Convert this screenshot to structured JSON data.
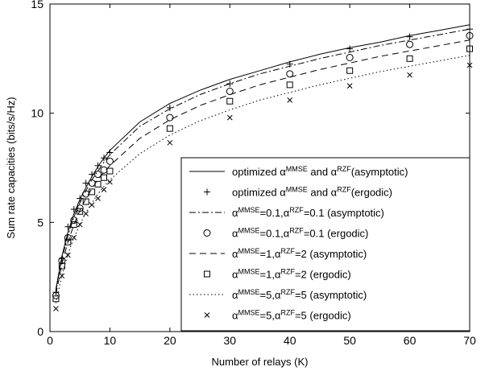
{
  "chart_data": {
    "type": "line",
    "xlabel": "Number of relays (K)",
    "ylabel": "Sum rate capacities (bits/s/Hz)",
    "xlim": [
      0,
      70
    ],
    "ylim": [
      0,
      15
    ],
    "xticks": [
      "0",
      "10",
      "20",
      "30",
      "40",
      "50",
      "60",
      "70"
    ],
    "yticks": [
      "0",
      "5",
      "10",
      "15"
    ],
    "grid": false,
    "legend_position": "bottom-right",
    "series": [
      {
        "name": "optimized α^MMSE and α^RZF(asymptotic)",
        "legend_parts": [
          [
            "optimized α",
            ""
          ],
          [
            "MMSE",
            "sup"
          ],
          [
            " and α",
            ""
          ],
          [
            "RZF",
            "sup"
          ],
          [
            "(asymptotic)",
            ""
          ]
        ],
        "style": "solid",
        "marker": "none",
        "x": [
          1,
          2,
          3,
          4,
          5,
          6,
          7,
          8,
          9,
          10,
          15,
          20,
          25,
          30,
          35,
          40,
          45,
          50,
          55,
          60,
          65,
          70
        ],
        "y": [
          1.95,
          3.45,
          4.55,
          5.4,
          6.05,
          6.6,
          7.1,
          7.55,
          7.95,
          8.3,
          9.6,
          10.45,
          11.05,
          11.55,
          11.95,
          12.35,
          12.7,
          13.0,
          13.25,
          13.55,
          13.8,
          14.05
        ]
      },
      {
        "name": "optimized α^MMSE and α^RZF(ergodic)",
        "legend_parts": [
          [
            "optimized α",
            ""
          ],
          [
            "MMSE",
            "sup"
          ],
          [
            " and α",
            ""
          ],
          [
            "RZF",
            "sup"
          ],
          [
            "(ergodic)",
            ""
          ]
        ],
        "style": "none",
        "marker": "plus",
        "x": [
          1,
          2,
          3,
          4,
          5,
          6,
          7,
          8,
          9,
          10,
          20,
          30,
          40,
          50,
          60,
          70
        ],
        "y": [
          1.8,
          3.35,
          4.8,
          5.6,
          6.1,
          6.8,
          7.2,
          7.6,
          7.95,
          8.2,
          10.25,
          11.35,
          12.25,
          12.95,
          13.5,
          13.85
        ]
      },
      {
        "name": "α^MMSE=0.1,α^RZF=0.1 (asymptotic)",
        "legend_parts": [
          [
            "α",
            ""
          ],
          [
            "MMSE",
            "sup"
          ],
          [
            "=0.1,α",
            ""
          ],
          [
            "RZF",
            "sup"
          ],
          [
            "=0.1 (asymptotic)",
            ""
          ]
        ],
        "style": "dashdot",
        "marker": "none",
        "x": [
          1,
          2,
          3,
          4,
          5,
          6,
          7,
          8,
          9,
          10,
          15,
          20,
          25,
          30,
          35,
          40,
          45,
          50,
          55,
          60,
          65,
          70
        ],
        "y": [
          1.85,
          3.35,
          4.4,
          5.25,
          5.9,
          6.45,
          6.95,
          7.35,
          7.75,
          8.1,
          9.4,
          10.2,
          10.85,
          11.35,
          11.8,
          12.15,
          12.5,
          12.8,
          13.1,
          13.35,
          13.6,
          13.85
        ]
      },
      {
        "name": "α^MMSE=0.1,α^RZF=0.1 (ergodic)",
        "legend_parts": [
          [
            "α",
            ""
          ],
          [
            "MMSE",
            "sup"
          ],
          [
            "=0.1,α",
            ""
          ],
          [
            "RZF",
            "sup"
          ],
          [
            "=0.1 (ergodic)",
            ""
          ]
        ],
        "style": "none",
        "marker": "circle",
        "x": [
          1,
          2,
          3,
          4,
          5,
          6,
          7,
          8,
          9,
          10,
          20,
          30,
          40,
          50,
          60,
          70
        ],
        "y": [
          1.65,
          3.25,
          4.3,
          5.1,
          5.65,
          6.3,
          6.8,
          7.2,
          7.4,
          7.8,
          9.8,
          11.0,
          11.8,
          12.55,
          13.15,
          13.55
        ]
      },
      {
        "name": "α^MMSE=1,α^RZF=2 (asymptotic)",
        "legend_parts": [
          [
            "α",
            ""
          ],
          [
            "MMSE",
            "sup"
          ],
          [
            "=1,α",
            ""
          ],
          [
            "RZF",
            "sup"
          ],
          [
            "=2 (asymptotic)",
            ""
          ]
        ],
        "style": "dashed",
        "marker": "none",
        "x": [
          1,
          2,
          3,
          4,
          5,
          6,
          7,
          8,
          9,
          10,
          15,
          20,
          25,
          30,
          35,
          40,
          45,
          50,
          55,
          60,
          65,
          70
        ],
        "y": [
          1.7,
          3.1,
          4.1,
          4.9,
          5.55,
          6.1,
          6.55,
          6.95,
          7.3,
          7.6,
          8.85,
          9.7,
          10.35,
          10.85,
          11.3,
          11.65,
          12.0,
          12.3,
          12.6,
          12.85,
          13.1,
          13.35
        ]
      },
      {
        "name": "α^MMSE=1,α^RZF=2 (ergodic)",
        "legend_parts": [
          [
            "α",
            ""
          ],
          [
            "MMSE",
            "sup"
          ],
          [
            "=1,α",
            ""
          ],
          [
            "RZF",
            "sup"
          ],
          [
            "=2 (ergodic)",
            ""
          ]
        ],
        "style": "none",
        "marker": "square",
        "x": [
          1,
          2,
          3,
          4,
          5,
          6,
          7,
          8,
          9,
          10,
          20,
          30,
          40,
          50,
          60,
          70
        ],
        "y": [
          1.5,
          3.0,
          4.1,
          4.9,
          5.5,
          5.95,
          6.4,
          6.75,
          7.05,
          7.35,
          9.3,
          10.55,
          11.3,
          11.95,
          12.5,
          12.95
        ]
      },
      {
        "name": "α^MMSE=5,α^RZF=5 (asymptotic)",
        "legend_parts": [
          [
            "α",
            ""
          ],
          [
            "MMSE",
            "sup"
          ],
          [
            "=5,α",
            ""
          ],
          [
            "RZF",
            "sup"
          ],
          [
            "=5 (asymptotic)",
            ""
          ]
        ],
        "style": "dotted",
        "marker": "none",
        "x": [
          1,
          2,
          3,
          4,
          5,
          6,
          7,
          8,
          9,
          10,
          15,
          20,
          25,
          30,
          35,
          40,
          45,
          50,
          55,
          60,
          65,
          70
        ],
        "y": [
          1.3,
          2.6,
          3.55,
          4.3,
          4.9,
          5.45,
          5.9,
          6.3,
          6.65,
          6.95,
          8.15,
          9.0,
          9.65,
          10.15,
          10.6,
          10.95,
          11.3,
          11.6,
          11.9,
          12.15,
          12.4,
          12.65
        ]
      },
      {
        "name": "α^MMSE=5,α^RZF=5 (ergodic)",
        "legend_parts": [
          [
            "α",
            ""
          ],
          [
            "MMSE",
            "sup"
          ],
          [
            "=5,α",
            ""
          ],
          [
            "RZF",
            "sup"
          ],
          [
            "=5 (ergodic)",
            ""
          ]
        ],
        "style": "none",
        "marker": "x",
        "x": [
          1,
          2,
          3,
          4,
          5,
          6,
          7,
          8,
          9,
          10,
          20,
          30,
          40,
          50,
          60,
          70
        ],
        "y": [
          1.05,
          2.55,
          3.5,
          4.3,
          4.9,
          5.4,
          5.8,
          6.1,
          6.5,
          6.85,
          8.65,
          9.8,
          10.6,
          11.25,
          11.75,
          12.2
        ]
      }
    ]
  }
}
